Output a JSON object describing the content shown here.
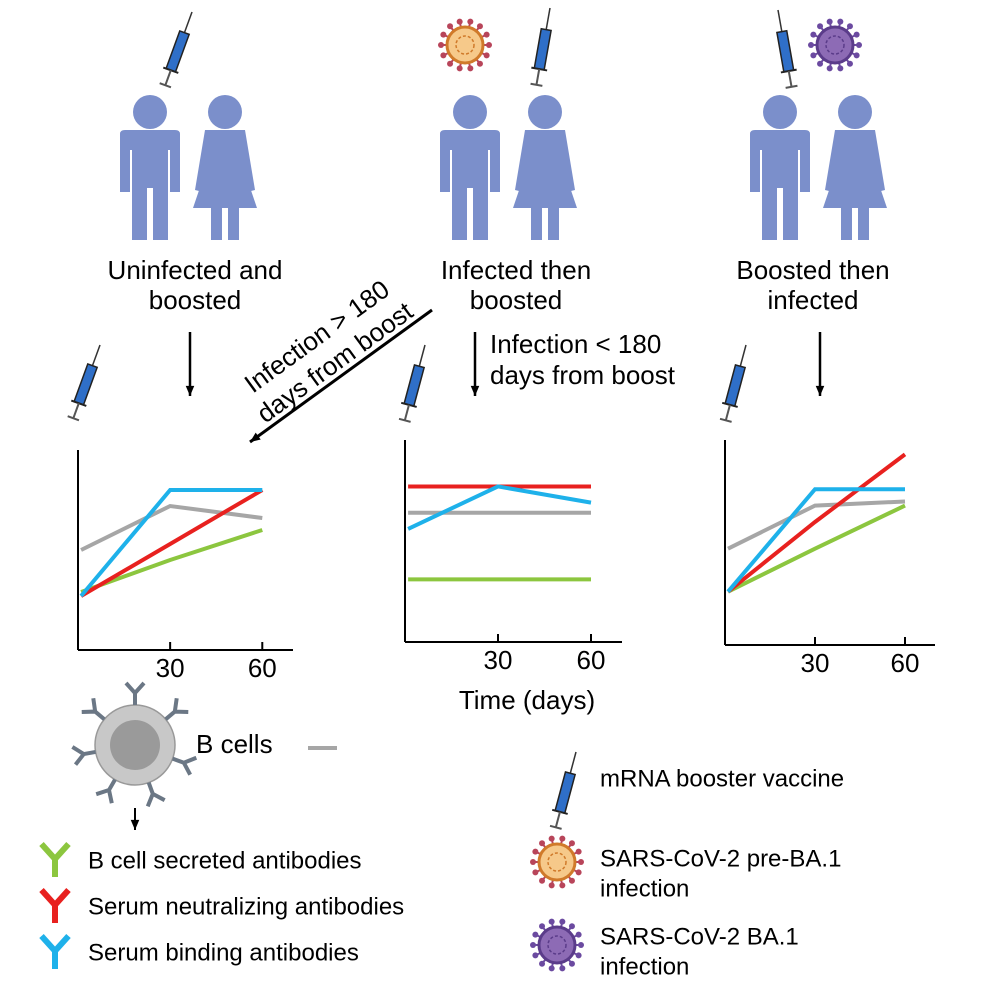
{
  "groups": [
    {
      "label_lines": [
        "Uninfected and",
        "boosted"
      ]
    },
    {
      "label_lines": [
        "Infected then",
        "boosted"
      ]
    },
    {
      "label_lines": [
        "Boosted then",
        "infected"
      ]
    }
  ],
  "arrow_labels": {
    "left": [
      "Infection > 180",
      "days from boost"
    ],
    "middle": [
      "Infection < 180",
      "days from boost"
    ]
  },
  "panels": [
    {
      "x": [
        1,
        30,
        60
      ],
      "xlim": [
        0,
        70
      ],
      "ylim": [
        0,
        100
      ],
      "xticks": [
        30,
        60
      ],
      "series": [
        {
          "color": "#a6a6a6",
          "values": [
            50,
            72,
            66
          ]
        },
        {
          "color": "#8cc63f",
          "values": [
            29,
            45,
            60
          ]
        },
        {
          "color": "#e8211f",
          "values": [
            27,
            53,
            80
          ]
        },
        {
          "color": "#1eb1ea",
          "values": [
            27,
            80,
            80
          ]
        }
      ]
    },
    {
      "x": [
        1,
        30,
        60
      ],
      "xlim": [
        0,
        70
      ],
      "ylim": [
        0,
        100
      ],
      "xticks": [
        30,
        60
      ],
      "series": [
        {
          "color": "#a6a6a6",
          "values": [
            64,
            64,
            64
          ]
        },
        {
          "color": "#8cc63f",
          "values": [
            31,
            31,
            31
          ]
        },
        {
          "color": "#e8211f",
          "values": [
            77,
            77,
            77
          ]
        },
        {
          "color": "#1eb1ea",
          "values": [
            56,
            77,
            69
          ]
        }
      ]
    },
    {
      "x": [
        1,
        30,
        60
      ],
      "xlim": [
        0,
        70
      ],
      "ylim": [
        0,
        100
      ],
      "xticks": [
        30,
        60
      ],
      "series": [
        {
          "color": "#a6a6a6",
          "values": [
            47,
            68,
            70
          ]
        },
        {
          "color": "#8cc63f",
          "values": [
            26,
            47,
            68
          ]
        },
        {
          "color": "#e8211f",
          "values": [
            26,
            60,
            93
          ]
        },
        {
          "color": "#1eb1ea",
          "values": [
            26,
            76,
            76
          ]
        }
      ]
    }
  ],
  "x_label": "Time (days)",
  "b_cells": {
    "label": "B cells",
    "color": "#a6a6a6"
  },
  "antibodies": [
    {
      "label": "B cell secreted antibodies",
      "color": "#8cc63f"
    },
    {
      "label": "Serum neutralizing antibodies",
      "color": "#e8211f"
    },
    {
      "label": "Serum binding antibodies",
      "color": "#1eb1ea"
    }
  ],
  "icon_legend": {
    "vaccine": "mRNA booster vaccine",
    "pre_ba1": [
      "SARS-CoV-2 pre-BA.1",
      "infection"
    ],
    "ba1": [
      "SARS-CoV-2 BA.1",
      "infection"
    ]
  }
}
